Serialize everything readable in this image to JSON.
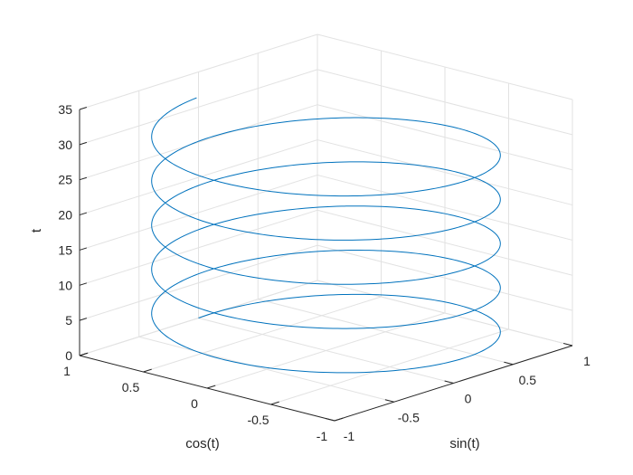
{
  "chart_data": {
    "type": "line3d",
    "title": "",
    "xlabel": "sin(t)",
    "ylabel": "cos(t)",
    "zlabel": "t",
    "xlim": [
      -1,
      1
    ],
    "ylim": [
      -1,
      1
    ],
    "zlim": [
      0,
      35
    ],
    "xticks": [
      "-1",
      "-0.5",
      "0",
      "0.5",
      "1"
    ],
    "yticks": [
      "-1",
      "-0.5",
      "0",
      "0.5",
      "1"
    ],
    "zticks": [
      "0",
      "5",
      "10",
      "15",
      "20",
      "25",
      "30",
      "35"
    ],
    "grid": true,
    "series": [
      {
        "function": {
          "x": "sin(t)",
          "y": "cos(t)",
          "z": "t"
        },
        "t_range": [
          0,
          31.4
        ],
        "color": "#0072BD"
      }
    ]
  },
  "colors": {
    "line": "#0072BD",
    "grid": "#e2e2e2",
    "axis": "#262626"
  }
}
